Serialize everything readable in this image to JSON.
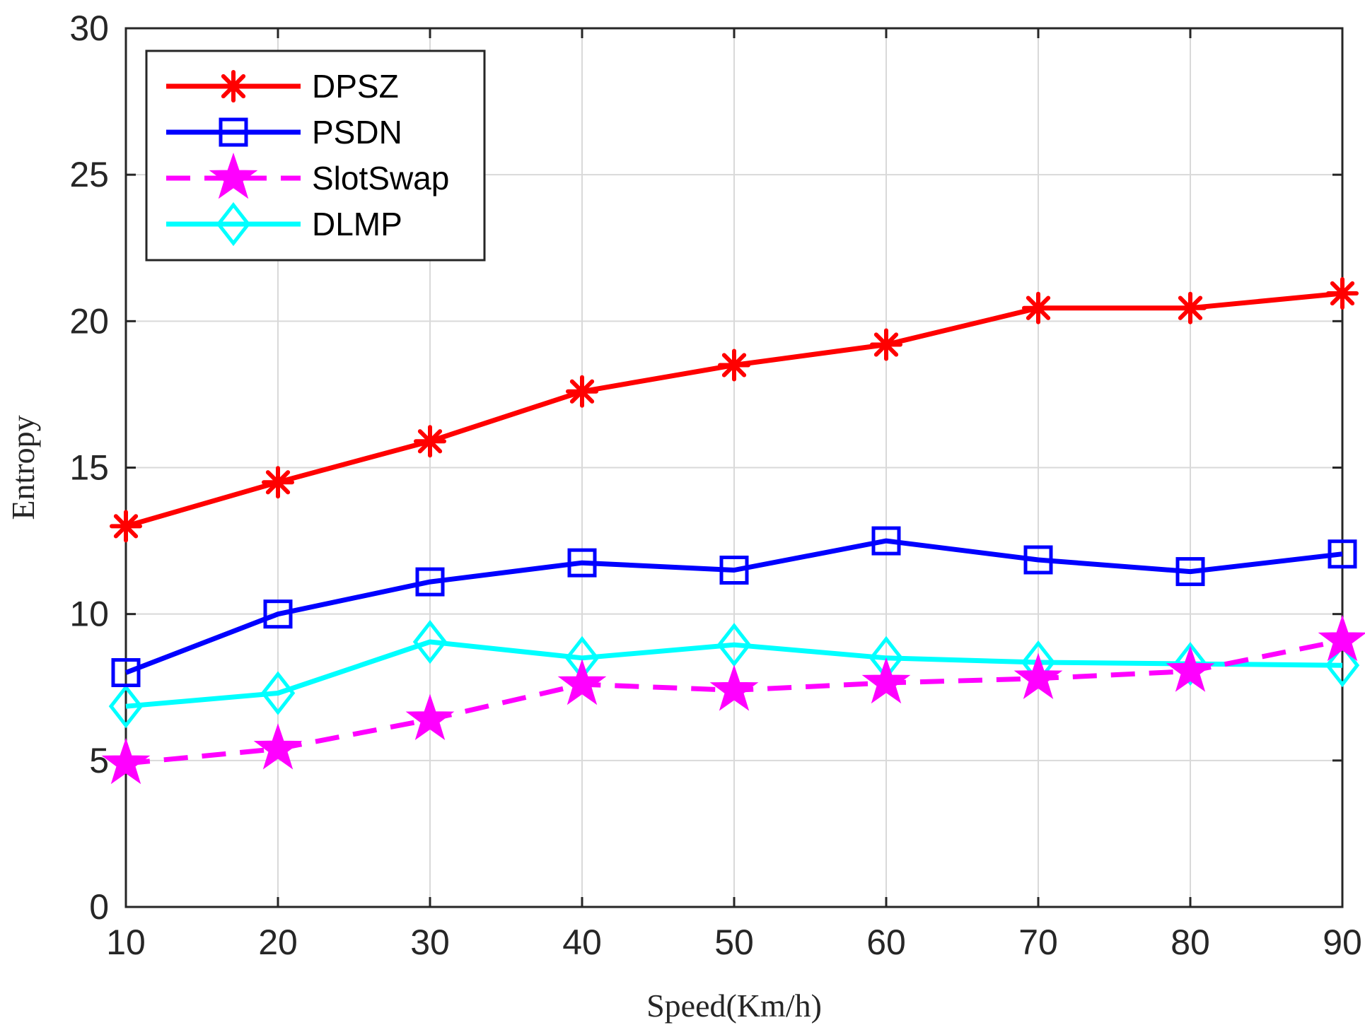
{
  "chart_data": {
    "type": "line",
    "xlabel": "Speed(Km/h)",
    "ylabel": "Entropy",
    "x": [
      10,
      20,
      30,
      40,
      50,
      60,
      70,
      80,
      90
    ],
    "xlim": [
      10,
      90
    ],
    "ylim": [
      0,
      30
    ],
    "xticks": [
      10,
      20,
      30,
      40,
      50,
      60,
      70,
      80,
      90
    ],
    "yticks": [
      0,
      5,
      10,
      15,
      20,
      25,
      30
    ],
    "grid": true,
    "legend_position": "top-left",
    "series": [
      {
        "name": "DPSZ",
        "color": "#ff0000",
        "marker": "asterisk",
        "line_style": "solid",
        "values": [
          13.0,
          14.5,
          15.9,
          17.6,
          18.5,
          19.2,
          20.45,
          20.45,
          20.95
        ]
      },
      {
        "name": "PSDN",
        "color": "#0000ff",
        "marker": "square",
        "line_style": "solid",
        "values": [
          8.0,
          10.0,
          11.1,
          11.75,
          11.5,
          12.5,
          11.85,
          11.45,
          12.05
        ]
      },
      {
        "name": "SlotSwap",
        "color": "#ff00ff",
        "marker": "star",
        "line_style": "dashed",
        "values": [
          4.9,
          5.4,
          6.4,
          7.6,
          7.4,
          7.65,
          7.8,
          8.05,
          9.1
        ]
      },
      {
        "name": "DLMP",
        "color": "#00ffff",
        "marker": "diamond",
        "line_style": "solid",
        "values": [
          6.85,
          7.3,
          9.05,
          8.5,
          8.95,
          8.5,
          8.35,
          8.3,
          8.25
        ]
      }
    ]
  }
}
